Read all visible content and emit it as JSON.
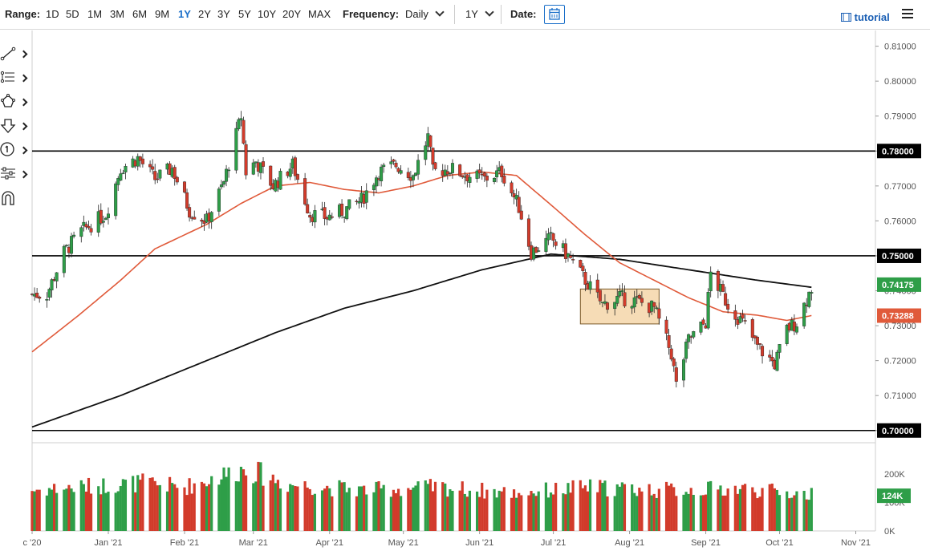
{
  "toolbar": {
    "range_label": "Range:",
    "ranges": [
      "1D",
      "5D",
      "1M",
      "3M",
      "6M",
      "9M",
      "1Y",
      "2Y",
      "3Y",
      "5Y",
      "10Y",
      "20Y",
      "MAX"
    ],
    "active_range": "1Y",
    "frequency_label": "Frequency:",
    "frequency_value": "Daily",
    "period_value": "1Y",
    "date_label": "Date:",
    "tutorial_label": "tutorial"
  },
  "sidebar_tools": [
    "trend-line-tool",
    "fibonacci-tool",
    "shape-tool",
    "arrow-tool",
    "annotation-tool",
    "indicator-tool",
    "magnet-tool"
  ],
  "colors": {
    "up": "#2e9e48",
    "down": "#d23b2b",
    "ma_short": "#e05a3a",
    "ma_long": "#111111",
    "highlight": "#f6dcb6"
  },
  "chart_data": {
    "type": "candlestick",
    "price_axis": {
      "ticks": [
        "0.81000",
        "0.80000",
        "0.79000",
        "0.78000",
        "0.77000",
        "0.76000",
        "0.75000",
        "0.74000",
        "0.73000",
        "0.72000",
        "0.71000",
        "0.70000"
      ],
      "ylim": [
        0.6965,
        0.8145
      ]
    },
    "x_labels": [
      "c '20",
      "Jan '21",
      "Feb '21",
      "Mar '21",
      "Apr '21",
      "May '21",
      "Jun '21",
      "Jul '21",
      "Aug '21",
      "Sep '21",
      "Oct '21",
      "Nov '21"
    ],
    "horizontal_lines": [
      {
        "label": "0.78000",
        "value": 0.78
      },
      {
        "label": "0.75000",
        "value": 0.75
      },
      {
        "label": "0.70000",
        "value": 0.7
      }
    ],
    "last_price_label": "0.74175",
    "last_price": 0.74175,
    "ma_short_label": "0.73288",
    "ma_short_last": 0.73288,
    "range_box": {
      "from_date": "2021-07-12",
      "to_date": "2021-08-13",
      "low": 0.7305,
      "high": 0.7405
    },
    "price_path": [
      [
        "2020-12-07",
        0.739
      ],
      [
        "2020-12-14",
        0.751
      ],
      [
        "2020-12-21",
        0.757
      ],
      [
        "2020-12-31",
        0.762
      ],
      [
        "2021-01-06",
        0.775
      ],
      [
        "2021-01-13",
        0.778
      ],
      [
        "2021-01-20",
        0.772
      ],
      [
        "2021-01-27",
        0.775
      ],
      [
        "2021-02-03",
        0.763
      ],
      [
        "2021-02-10",
        0.76
      ],
      [
        "2021-02-17",
        0.771
      ],
      [
        "2021-02-24",
        0.79
      ],
      [
        "2021-02-26",
        0.774
      ],
      [
        "2021-03-02",
        0.777
      ],
      [
        "2021-03-09",
        0.77
      ],
      [
        "2021-03-17",
        0.776
      ],
      [
        "2021-03-24",
        0.762
      ],
      [
        "2021-03-31",
        0.761
      ],
      [
        "2021-04-07",
        0.763
      ],
      [
        "2021-04-14",
        0.766
      ],
      [
        "2021-04-21",
        0.774
      ],
      [
        "2021-04-28",
        0.776
      ],
      [
        "2021-05-05",
        0.773
      ],
      [
        "2021-05-11",
        0.784
      ],
      [
        "2021-05-13",
        0.774
      ],
      [
        "2021-05-20",
        0.775
      ],
      [
        "2021-05-27",
        0.773
      ],
      [
        "2021-06-03",
        0.772
      ],
      [
        "2021-06-10",
        0.774
      ],
      [
        "2021-06-17",
        0.764
      ],
      [
        "2021-06-22",
        0.751
      ],
      [
        "2021-06-30",
        0.755
      ],
      [
        "2021-07-07",
        0.75
      ],
      [
        "2021-07-14",
        0.743
      ],
      [
        "2021-07-21",
        0.736
      ],
      [
        "2021-07-28",
        0.738
      ],
      [
        "2021-08-04",
        0.737
      ],
      [
        "2021-08-11",
        0.735
      ],
      [
        "2021-08-18",
        0.722
      ],
      [
        "2021-08-20",
        0.713
      ],
      [
        "2021-08-25",
        0.726
      ],
      [
        "2021-09-01",
        0.731
      ],
      [
        "2021-09-03",
        0.745
      ],
      [
        "2021-09-10",
        0.736
      ],
      [
        "2021-09-17",
        0.73
      ],
      [
        "2021-09-22",
        0.724
      ],
      [
        "2021-09-29",
        0.719
      ],
      [
        "2021-10-04",
        0.729
      ],
      [
        "2021-10-08",
        0.731
      ],
      [
        "2021-10-14",
        0.741
      ]
    ],
    "ma_short_path": [
      [
        "2020-12-01",
        0.7225
      ],
      [
        "2020-12-20",
        0.733
      ],
      [
        "2021-01-06",
        0.743
      ],
      [
        "2021-01-20",
        0.752
      ],
      [
        "2021-02-10",
        0.759
      ],
      [
        "2021-02-24",
        0.765
      ],
      [
        "2021-03-10",
        0.77
      ],
      [
        "2021-03-24",
        0.771
      ],
      [
        "2021-04-07",
        0.769
      ],
      [
        "2021-04-21",
        0.768
      ],
      [
        "2021-05-05",
        0.77
      ],
      [
        "2021-05-19",
        0.773
      ],
      [
        "2021-06-02",
        0.774
      ],
      [
        "2021-06-16",
        0.773
      ],
      [
        "2021-07-01",
        0.764
      ],
      [
        "2021-07-14",
        0.756
      ],
      [
        "2021-07-28",
        0.748
      ],
      [
        "2021-08-11",
        0.743
      ],
      [
        "2021-08-25",
        0.738
      ],
      [
        "2021-09-08",
        0.734
      ],
      [
        "2021-09-22",
        0.733
      ],
      [
        "2021-10-04",
        0.7315
      ],
      [
        "2021-10-14",
        0.7329
      ]
    ],
    "ma_long_path": [
      [
        "2020-12-01",
        0.701
      ],
      [
        "2021-01-06",
        0.71
      ],
      [
        "2021-02-10",
        0.72
      ],
      [
        "2021-03-10",
        0.728
      ],
      [
        "2021-04-07",
        0.735
      ],
      [
        "2021-05-05",
        0.74
      ],
      [
        "2021-06-02",
        0.746
      ],
      [
        "2021-06-30",
        0.7505
      ],
      [
        "2021-07-28",
        0.749
      ],
      [
        "2021-08-25",
        0.746
      ],
      [
        "2021-09-22",
        0.743
      ],
      [
        "2021-10-14",
        0.741
      ]
    ],
    "volume": {
      "ticks": [
        "200K",
        "100K",
        "0K"
      ],
      "ylim": [
        0,
        260000
      ],
      "last_label": "124K",
      "last_value": 124000,
      "path": [
        [
          "2020-12-01",
          140000
        ],
        [
          "2021-01-15",
          165000
        ],
        [
          "2021-02-01",
          150000
        ],
        [
          "2021-02-26",
          215000
        ],
        [
          "2021-03-15",
          160000
        ],
        [
          "2021-04-15",
          140000
        ],
        [
          "2021-05-15",
          150000
        ],
        [
          "2021-06-15",
          130000
        ],
        [
          "2021-07-15",
          150000
        ],
        [
          "2021-08-15",
          140000
        ],
        [
          "2021-09-15",
          145000
        ],
        [
          "2021-10-14",
          124000
        ]
      ]
    }
  }
}
